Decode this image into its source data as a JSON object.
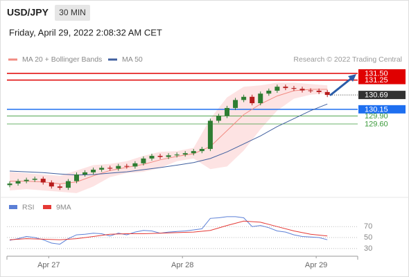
{
  "header": {
    "symbol": "USD/JPY",
    "timeframe": "30 MIN",
    "datetime": "Friday, April 29, 2022 2:08:32 AM CET",
    "source": "Research © 2022 Trading Central"
  },
  "chart_data": [
    {
      "type": "candlestick",
      "x": [
        0,
        3,
        6,
        9,
        12,
        15,
        18,
        21,
        24,
        27,
        30,
        33,
        36,
        39,
        42,
        45,
        48,
        51,
        54,
        57,
        60,
        63,
        66,
        69,
        72,
        75,
        78,
        81,
        84,
        87,
        90,
        93,
        96,
        99,
        102,
        105,
        108,
        111,
        114
      ],
      "open": [
        127.3,
        127.36,
        127.45,
        127.5,
        127.54,
        127.4,
        127.25,
        127.2,
        127.45,
        127.7,
        127.78,
        127.88,
        127.95,
        127.92,
        128.02,
        128.0,
        128.12,
        128.3,
        128.4,
        128.36,
        128.42,
        128.45,
        128.5,
        128.58,
        128.66,
        129.72,
        129.9,
        130.2,
        130.5,
        130.62,
        130.38,
        130.74,
        130.85,
        131.0,
        130.95,
        130.92,
        130.86,
        130.85,
        130.8
      ],
      "high": [
        127.44,
        127.53,
        127.58,
        127.62,
        127.62,
        127.48,
        127.33,
        127.53,
        127.78,
        127.86,
        127.96,
        128.03,
        128.03,
        128.1,
        128.1,
        128.2,
        128.38,
        128.48,
        128.48,
        128.5,
        128.53,
        128.58,
        128.66,
        128.74,
        129.8,
        129.98,
        130.28,
        130.58,
        130.7,
        130.7,
        130.82,
        130.93,
        131.08,
        131.08,
        131.03,
        131.0,
        130.94,
        130.93,
        130.88
      ],
      "low": [
        127.22,
        127.28,
        127.37,
        127.42,
        127.32,
        127.17,
        127.12,
        127.12,
        127.37,
        127.62,
        127.7,
        127.8,
        127.84,
        127.84,
        127.92,
        127.92,
        128.04,
        128.22,
        128.28,
        128.28,
        128.34,
        128.37,
        128.42,
        128.5,
        128.58,
        129.64,
        129.82,
        130.12,
        130.42,
        130.3,
        130.3,
        130.66,
        130.77,
        130.87,
        130.84,
        130.78,
        130.77,
        130.72,
        130.61
      ],
      "close": [
        127.36,
        127.45,
        127.5,
        127.54,
        127.4,
        127.25,
        127.2,
        127.45,
        127.7,
        127.78,
        127.88,
        127.95,
        127.92,
        128.02,
        128.0,
        128.12,
        128.3,
        128.4,
        128.36,
        128.42,
        128.45,
        128.5,
        128.58,
        128.66,
        129.72,
        129.9,
        130.2,
        130.5,
        130.62,
        130.38,
        130.74,
        130.85,
        131.0,
        130.95,
        130.92,
        130.86,
        130.85,
        130.8,
        130.69
      ],
      "up_color": "#2e7d32",
      "down_color": "#b71c1c",
      "lines": [
        {
          "name": "MA 20 + Bollinger Bands",
          "color": "#f28b82",
          "band_color": "#fde3e3",
          "x": [
            0,
            6,
            12,
            18,
            24,
            30,
            36,
            42,
            48,
            54,
            60,
            66,
            72,
            78,
            84,
            90,
            96,
            102,
            108,
            114
          ],
          "values": [
            127.45,
            127.45,
            127.42,
            127.35,
            127.42,
            127.65,
            127.85,
            127.97,
            128.08,
            128.25,
            128.38,
            128.48,
            128.75,
            129.35,
            129.95,
            130.35,
            130.65,
            130.85,
            130.9,
            130.9
          ],
          "upper": [
            127.8,
            127.75,
            127.7,
            127.65,
            127.85,
            128.05,
            128.1,
            128.2,
            128.4,
            128.55,
            128.58,
            128.7,
            129.8,
            130.6,
            131.0,
            131.05,
            131.15,
            131.15,
            131.1,
            131.05
          ],
          "lower": [
            127.1,
            127.15,
            127.1,
            127.05,
            127.0,
            127.25,
            127.6,
            127.75,
            127.8,
            127.95,
            128.2,
            128.3,
            127.9,
            128.0,
            128.6,
            129.4,
            130.1,
            130.55,
            130.7,
            130.75
          ]
        },
        {
          "name": "MA 50",
          "color": "#3f5f9f",
          "x": [
            0,
            6,
            12,
            18,
            24,
            30,
            36,
            42,
            48,
            54,
            60,
            66,
            72,
            78,
            84,
            90,
            96,
            102,
            108,
            114
          ],
          "values": [
            127.83,
            127.8,
            127.77,
            127.72,
            127.68,
            127.7,
            127.75,
            127.8,
            127.88,
            127.96,
            128.05,
            128.15,
            128.3,
            128.55,
            128.85,
            129.15,
            129.5,
            129.8,
            130.1,
            130.35
          ]
        }
      ],
      "levels": [
        {
          "value": 131.5,
          "label": "131.50",
          "color": "#e00000",
          "boxed": true,
          "style": "solid"
        },
        {
          "value": 131.25,
          "label": "131.25",
          "color": "#e00000",
          "boxed": true,
          "style": "solid"
        },
        {
          "value": 130.69,
          "label": "130.69",
          "color": "#333333",
          "boxed": true,
          "style": "dotted"
        },
        {
          "value": 130.15,
          "label": "130.15",
          "color": "#1e6ff0",
          "boxed": true,
          "style": "solid"
        },
        {
          "value": 129.9,
          "label": "129.90",
          "color": "#3a9a3a",
          "boxed": false,
          "style": "solid"
        },
        {
          "value": 129.6,
          "label": "129.60",
          "color": "#3a9a3a",
          "boxed": false,
          "style": "solid"
        }
      ],
      "xlim": [
        -1,
        124.9
      ],
      "ylim": [
        126.84,
        131.76
      ]
    },
    {
      "type": "line",
      "series": [
        {
          "name": "RSI",
          "color": "#5b7fd6",
          "x": [
            0,
            3,
            6,
            9,
            12,
            15,
            18,
            21,
            24,
            27,
            30,
            33,
            36,
            39,
            42,
            45,
            48,
            51,
            54,
            57,
            60,
            63,
            66,
            69,
            72,
            75,
            78,
            81,
            84,
            87,
            90,
            93,
            96,
            99,
            102,
            105,
            108,
            111,
            114
          ],
          "values": [
            45,
            48,
            52,
            50,
            46,
            40,
            38,
            48,
            55,
            56,
            58,
            57,
            53,
            58,
            55,
            60,
            63,
            62,
            58,
            60,
            61,
            62,
            64,
            66,
            85,
            86,
            88,
            88,
            86,
            70,
            72,
            68,
            62,
            60,
            55,
            52,
            51,
            50,
            46
          ]
        },
        {
          "name": "9MA",
          "color": "#e53935",
          "x": [
            0,
            6,
            12,
            18,
            24,
            30,
            36,
            42,
            48,
            54,
            60,
            66,
            72,
            78,
            84,
            90,
            96,
            102,
            108,
            114
          ],
          "values": [
            46,
            48,
            47,
            46,
            48,
            52,
            56,
            57,
            57,
            58,
            59,
            60,
            63,
            72,
            80,
            78,
            70,
            62,
            56,
            53
          ]
        }
      ],
      "xlim": [
        -1,
        124.9
      ],
      "ylim": [
        16,
        98
      ],
      "yticks": [
        30,
        50,
        70
      ],
      "grid": true,
      "xticks": [
        {
          "value": 14,
          "label": "Apr 27"
        },
        {
          "value": 62,
          "label": "Apr 28"
        },
        {
          "value": 110,
          "label": "Apr 29"
        }
      ]
    }
  ]
}
